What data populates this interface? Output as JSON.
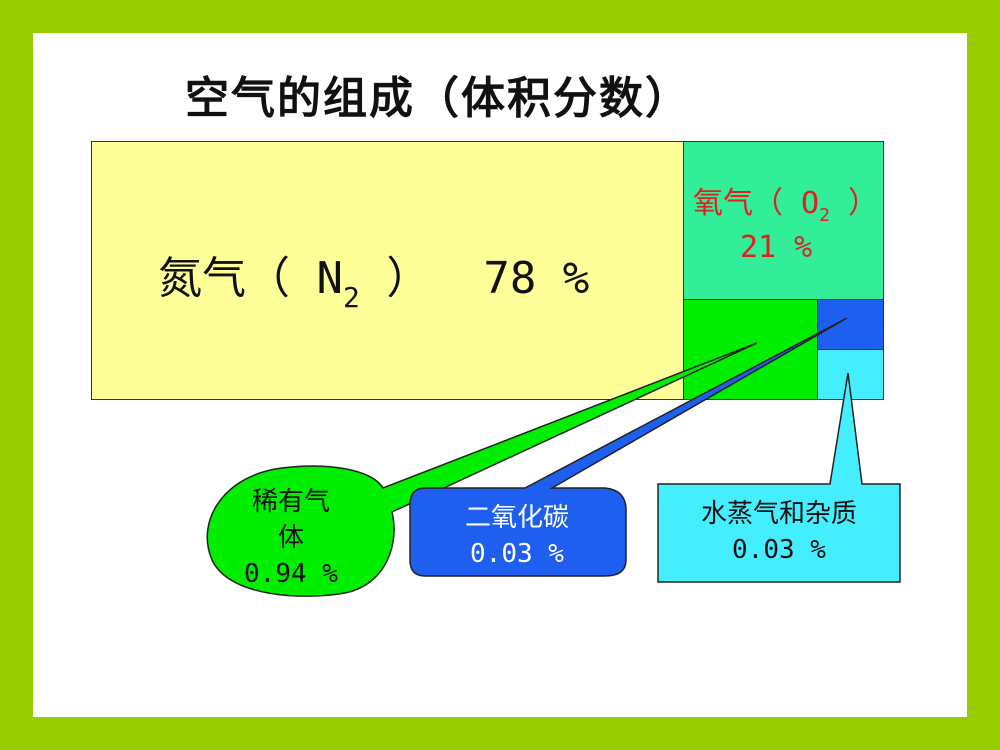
{
  "title": "空气的组成（体积分数）",
  "components": {
    "n2": {
      "name": "氮气（ N",
      "subscript": "2",
      "close": " ）",
      "value": "78 %",
      "color": "#ffff99"
    },
    "o2": {
      "name": "氧气（ O",
      "subscript": "2",
      "close": " ）",
      "value": "21 %",
      "color": "#33ee99"
    },
    "rare": {
      "line1": "稀有气",
      "line2": "体",
      "value": "0.94 %",
      "color": "#00ee00"
    },
    "co2": {
      "name": "二氧化碳",
      "value": "0.03 %",
      "color": "#1f5ff0"
    },
    "h2o": {
      "name": "水蒸气和杂质",
      "value": "0.03 %",
      "color": "#44eeff"
    }
  },
  "colors": {
    "background": "#99cc00",
    "slide": "#ffffff",
    "o2_text": "#e02020"
  }
}
